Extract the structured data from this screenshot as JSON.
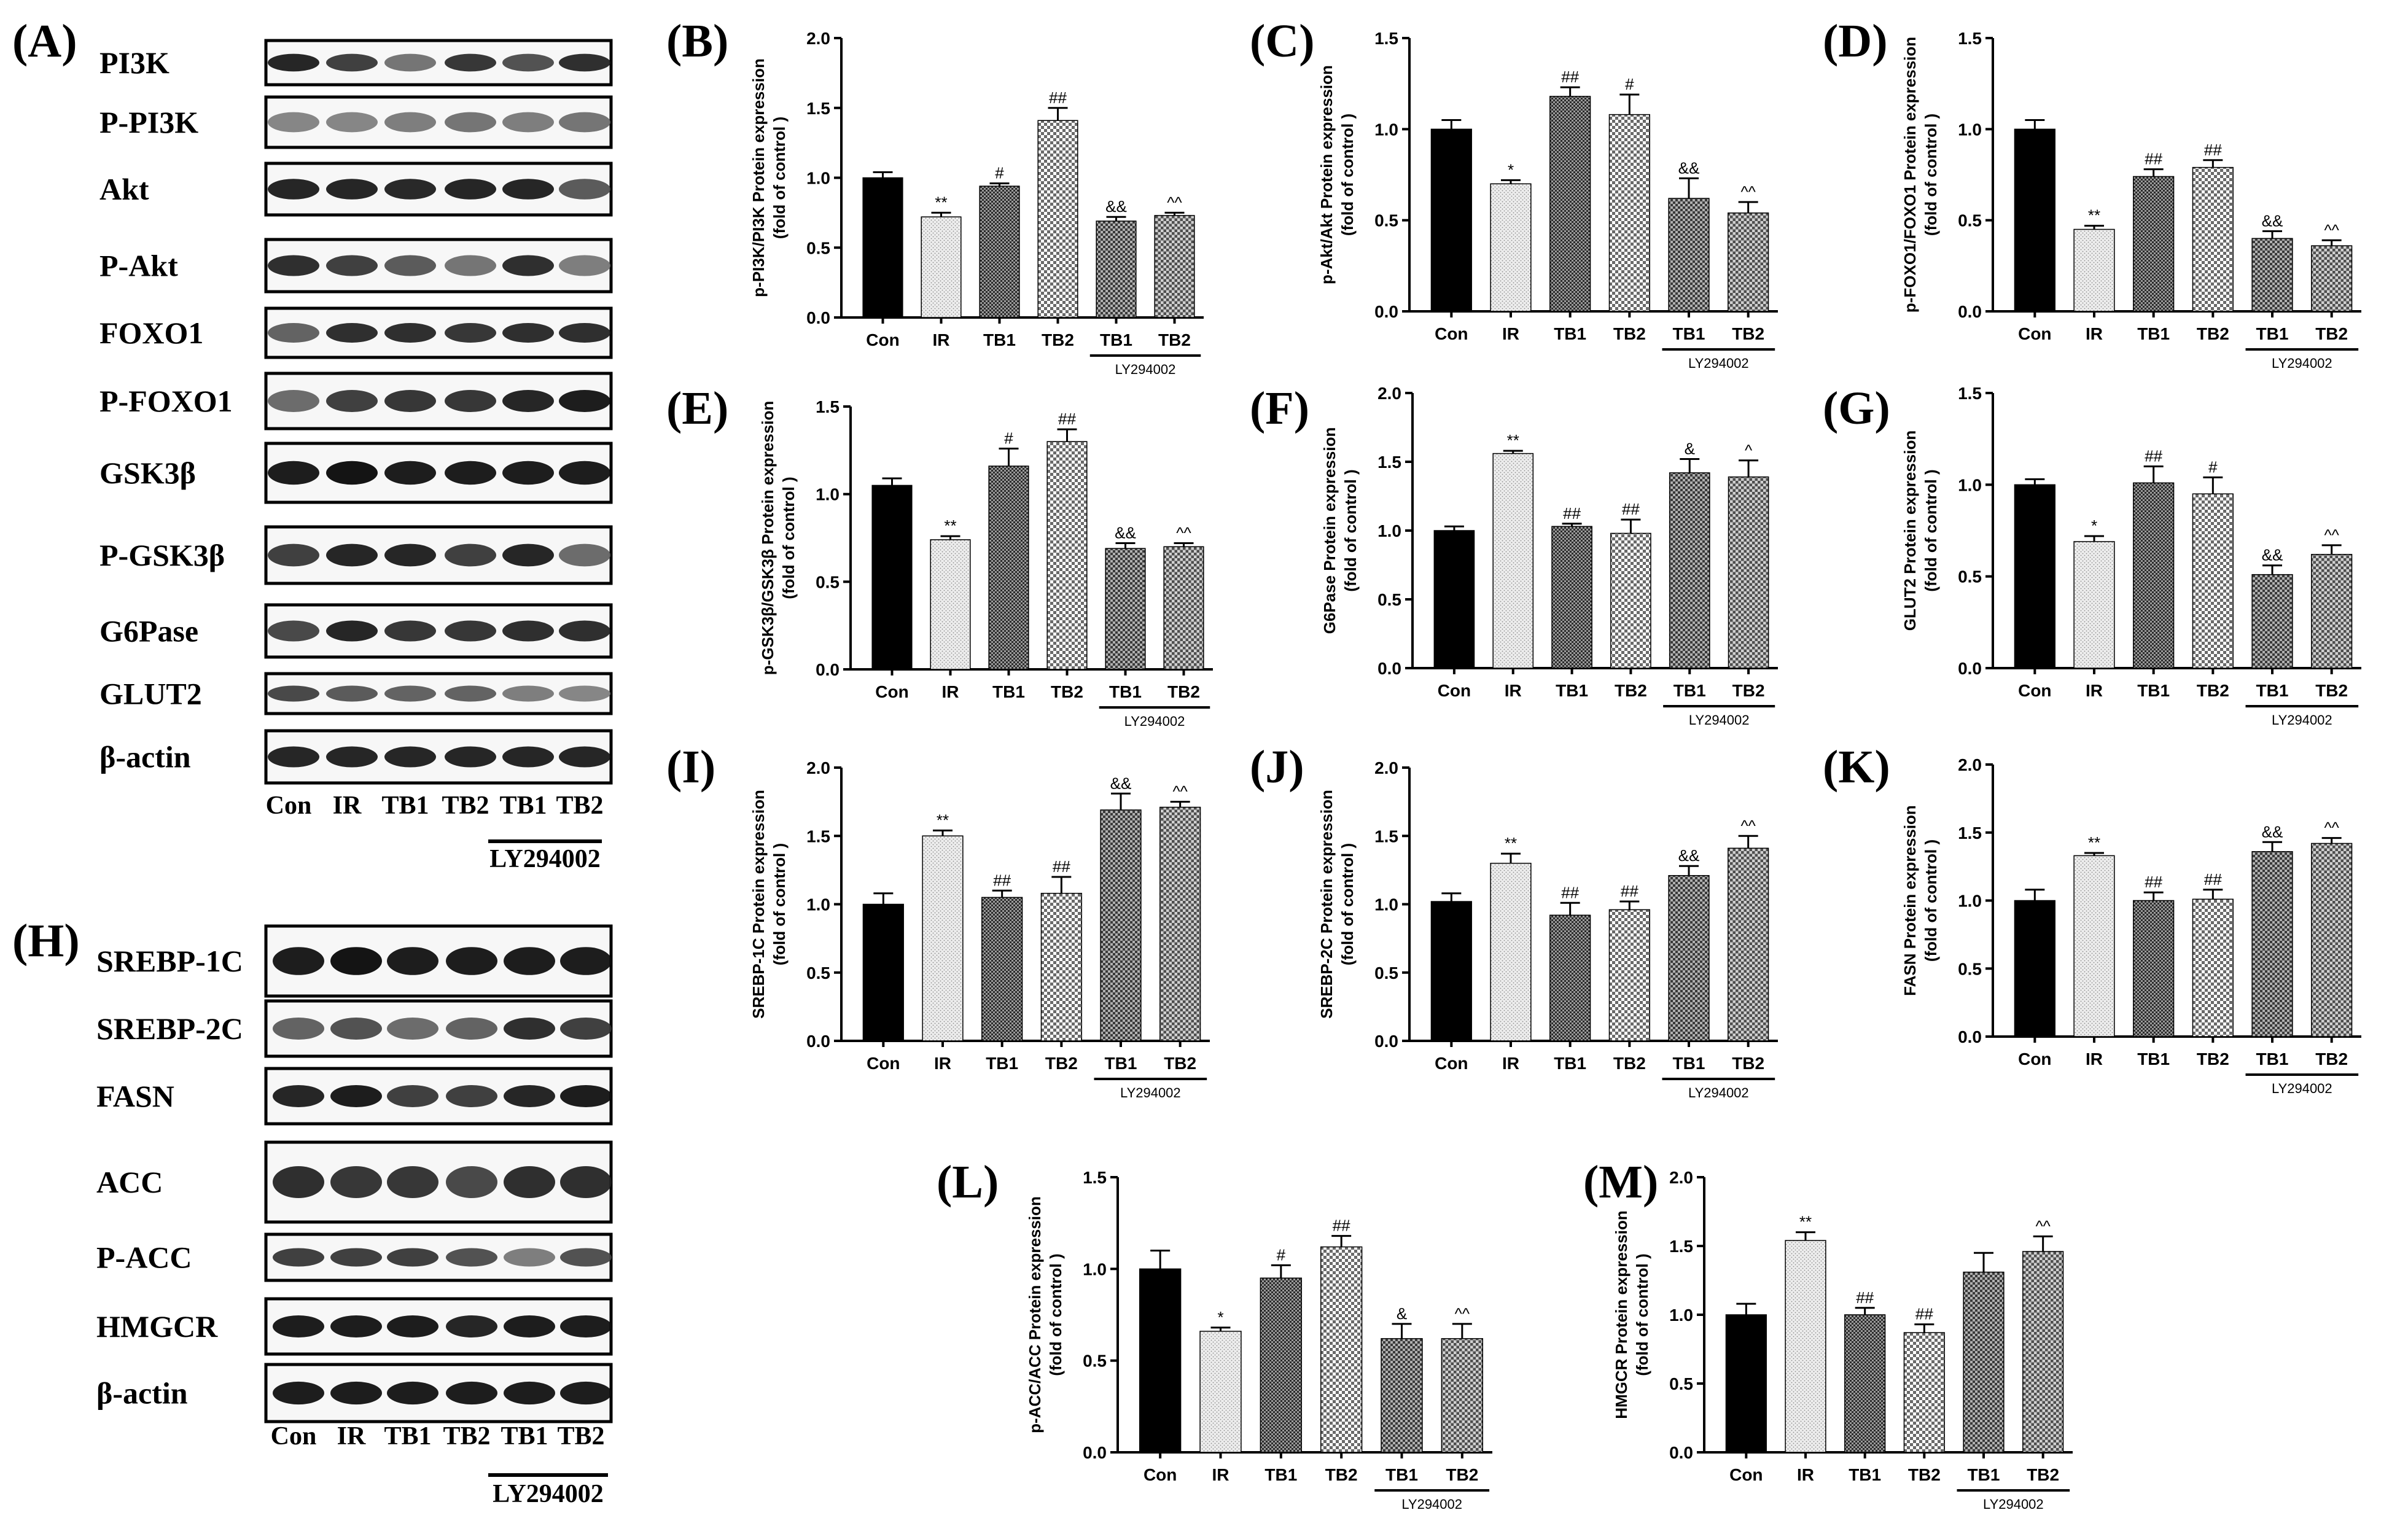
{
  "blots": [
    {
      "panel": "(A)",
      "labels": [
        "PI3K",
        "P-PI3K",
        "Akt",
        "P-Akt",
        "FOXO1",
        "P-FOXO1",
        "GSK3β",
        "P-GSK3β",
        "G6Pase",
        "GLUT2",
        "β-actin"
      ],
      "lanes": [
        "Con",
        "IR",
        "TB1",
        "TB2",
        "TB1",
        "TB2"
      ],
      "inhibitor": "LY294002"
    },
    {
      "panel": "(H)",
      "labels": [
        "SREBP-1C",
        "SREBP-2C",
        "FASN",
        "ACC",
        "P-ACC",
        "HMGCR",
        "β-actin"
      ],
      "lanes": [
        "Con",
        "IR",
        "TB1",
        "TB2",
        "TB1",
        "TB2"
      ],
      "inhibitor": "LY294002"
    }
  ],
  "chart_data": [
    {
      "panel": "(B)",
      "type": "bar",
      "categories": [
        "Con",
        "IR",
        "TB1",
        "TB2",
        "TB1",
        "TB2"
      ],
      "values": [
        1.0,
        0.72,
        0.94,
        1.41,
        0.69,
        0.73
      ],
      "errors": [
        0.04,
        0.03,
        0.02,
        0.09,
        0.03,
        0.02
      ],
      "sig": [
        "",
        "**",
        "#",
        "##",
        "&&",
        "^^"
      ],
      "ylabel": [
        "p-PI3K/PI3K Protein expression",
        "(fold of control )"
      ],
      "ylim": [
        0,
        2.0
      ],
      "yticks": [
        "0.0",
        "0.5",
        "1.0",
        "1.5",
        "2.0"
      ],
      "inhibitor": "LY294002"
    },
    {
      "panel": "(C)",
      "type": "bar",
      "categories": [
        "Con",
        "IR",
        "TB1",
        "TB2",
        "TB1",
        "TB2"
      ],
      "values": [
        1.0,
        0.7,
        1.18,
        1.08,
        0.62,
        0.54
      ],
      "errors": [
        0.05,
        0.02,
        0.05,
        0.11,
        0.11,
        0.06
      ],
      "sig": [
        "",
        "*",
        "##",
        "#",
        "&&",
        "^^"
      ],
      "ylabel": [
        "p-Akt/Akt Protein expression",
        "(fold of control )"
      ],
      "ylim": [
        0,
        1.5
      ],
      "yticks": [
        "0.0",
        "0.5",
        "1.0",
        "1.5"
      ],
      "inhibitor": "LY294002"
    },
    {
      "panel": "(D)",
      "type": "bar",
      "categories": [
        "Con",
        "IR",
        "TB1",
        "TB2",
        "TB1",
        "TB2"
      ],
      "values": [
        1.0,
        0.45,
        0.74,
        0.79,
        0.4,
        0.36
      ],
      "errors": [
        0.05,
        0.02,
        0.04,
        0.04,
        0.04,
        0.03
      ],
      "sig": [
        "",
        "**",
        "##",
        "##",
        "&&",
        "^^"
      ],
      "ylabel": [
        "p-FOXO1/FOXO1 Protein expression",
        "(fold of control )"
      ],
      "ylim": [
        0,
        1.5
      ],
      "yticks": [
        "0.0",
        "0.5",
        "1.0",
        "1.5"
      ],
      "inhibitor": "LY294002"
    },
    {
      "panel": "(E)",
      "type": "bar",
      "categories": [
        "Con",
        "IR",
        "TB1",
        "TB2",
        "TB1",
        "TB2"
      ],
      "values": [
        1.05,
        0.74,
        1.16,
        1.3,
        0.69,
        0.7
      ],
      "errors": [
        0.04,
        0.02,
        0.1,
        0.07,
        0.03,
        0.02
      ],
      "sig": [
        "",
        "**",
        "#",
        "##",
        "&&",
        "^^"
      ],
      "ylabel": [
        "p-GSK3β/GSK3β Protein expression",
        "(fold of control )"
      ],
      "ylim": [
        0,
        1.5
      ],
      "yticks": [
        "0.0",
        "0.5",
        "1.0",
        "1.5"
      ],
      "inhibitor": "LY294002"
    },
    {
      "panel": "(F)",
      "type": "bar",
      "categories": [
        "Con",
        "IR",
        "TB1",
        "TB2",
        "TB1",
        "TB2"
      ],
      "values": [
        1.0,
        1.56,
        1.03,
        0.98,
        1.42,
        1.39
      ],
      "errors": [
        0.03,
        0.02,
        0.02,
        0.1,
        0.1,
        0.12
      ],
      "sig": [
        "",
        "**",
        "##",
        "##",
        "&",
        "^"
      ],
      "ylabel": [
        "G6Pase  Protein expression",
        "(fold of control )"
      ],
      "ylim": [
        0,
        2.0
      ],
      "yticks": [
        "0.0",
        "0.5",
        "1.0",
        "1.5",
        "2.0"
      ],
      "inhibitor": "LY294002"
    },
    {
      "panel": "(G)",
      "type": "bar",
      "categories": [
        "Con",
        "IR",
        "TB1",
        "TB2",
        "TB1",
        "TB2"
      ],
      "values": [
        1.0,
        0.69,
        1.01,
        0.95,
        0.51,
        0.62
      ],
      "errors": [
        0.03,
        0.03,
        0.09,
        0.09,
        0.05,
        0.05
      ],
      "sig": [
        "",
        "*",
        "##",
        "#",
        "&&",
        "^^"
      ],
      "ylabel": [
        "GLUT2  Protein expression",
        "(fold of control )"
      ],
      "ylim": [
        0,
        1.5
      ],
      "yticks": [
        "0.0",
        "0.5",
        "1.0",
        "1.5"
      ],
      "inhibitor": "LY294002"
    },
    {
      "panel": "(I)",
      "type": "bar",
      "categories": [
        "Con",
        "IR",
        "TB1",
        "TB2",
        "TB1",
        "TB2"
      ],
      "values": [
        1.0,
        1.5,
        1.05,
        1.08,
        1.69,
        1.71
      ],
      "errors": [
        0.08,
        0.04,
        0.05,
        0.12,
        0.12,
        0.04
      ],
      "sig": [
        "",
        "**",
        "##",
        "##",
        "&&",
        "^^"
      ],
      "ylabel": [
        "SREBP-1C Protein expression",
        "(fold of control )"
      ],
      "ylim": [
        0,
        2.0
      ],
      "yticks": [
        "0.0",
        "0.5",
        "1.0",
        "1.5",
        "2.0"
      ],
      "inhibitor": "LY294002"
    },
    {
      "panel": "(J)",
      "type": "bar",
      "categories": [
        "Con",
        "IR",
        "TB1",
        "TB2",
        "TB1",
        "TB2"
      ],
      "values": [
        1.02,
        1.3,
        0.92,
        0.96,
        1.21,
        1.41
      ],
      "errors": [
        0.06,
        0.07,
        0.09,
        0.06,
        0.07,
        0.09
      ],
      "sig": [
        "",
        "**",
        "##",
        "##",
        "&&",
        "^^"
      ],
      "ylabel": [
        "SREBP-2C Protein expression",
        "(fold of control )"
      ],
      "ylim": [
        0,
        2.0
      ],
      "yticks": [
        "0.0",
        "0.5",
        "1.0",
        "1.5",
        "2.0"
      ],
      "inhibitor": "LY294002"
    },
    {
      "panel": "(K)",
      "type": "bar",
      "categories": [
        "Con",
        "IR",
        "TB1",
        "TB2",
        "TB1",
        "TB2"
      ],
      "values": [
        1.0,
        1.33,
        1.0,
        1.01,
        1.36,
        1.42
      ],
      "errors": [
        0.08,
        0.02,
        0.06,
        0.07,
        0.07,
        0.04
      ],
      "sig": [
        "",
        "**",
        "##",
        "##",
        "&&",
        "^^"
      ],
      "ylabel": [
        "FASN Protein expression",
        "(fold of control )"
      ],
      "ylim": [
        0,
        2.0
      ],
      "yticks": [
        "0.0",
        "0.5",
        "1.0",
        "1.5",
        "2.0"
      ],
      "inhibitor": "LY294002"
    },
    {
      "panel": "(L)",
      "type": "bar",
      "categories": [
        "Con",
        "IR",
        "TB1",
        "TB2",
        "TB1",
        "TB2"
      ],
      "values": [
        1.0,
        0.66,
        0.95,
        1.12,
        0.62,
        0.62
      ],
      "errors": [
        0.1,
        0.02,
        0.07,
        0.06,
        0.08,
        0.08
      ],
      "sig": [
        "",
        "*",
        "#",
        "##",
        "&",
        "^^"
      ],
      "ylabel": [
        "p-ACC/ACC Protein expression",
        "(fold of control )"
      ],
      "ylim": [
        0,
        1.5
      ],
      "yticks": [
        "0.0",
        "0.5",
        "1.0",
        "1.5"
      ],
      "inhibitor": "LY294002"
    },
    {
      "panel": "(M)",
      "type": "bar",
      "categories": [
        "Con",
        "IR",
        "TB1",
        "TB2",
        "TB1",
        "TB2"
      ],
      "values": [
        1.0,
        1.54,
        1.0,
        0.87,
        1.31,
        1.46
      ],
      "errors": [
        0.08,
        0.06,
        0.05,
        0.06,
        0.14,
        0.11
      ],
      "sig": [
        "",
        "**",
        "##",
        "##",
        "",
        "^^"
      ],
      "ylabel": [
        "HMGCR Protein expression",
        "(fold of control )"
      ],
      "ylim": [
        0,
        2.0
      ],
      "yticks": [
        "0.0",
        "0.5",
        "1.0",
        "1.5",
        "2.0"
      ],
      "inhibitor": "LY294002"
    }
  ]
}
